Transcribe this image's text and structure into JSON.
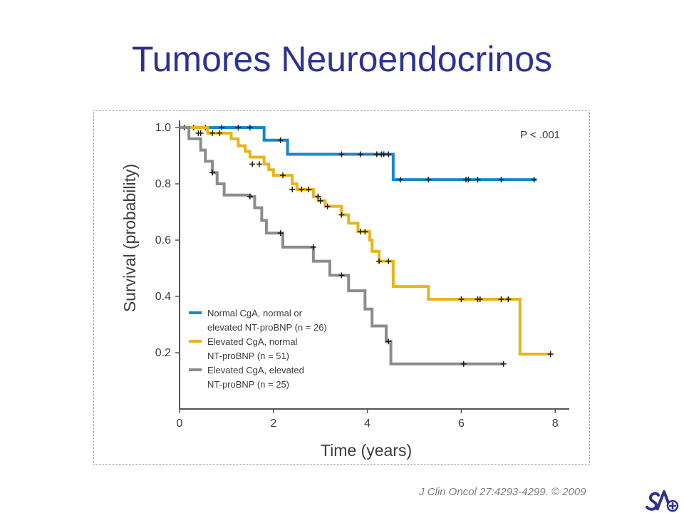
{
  "slide": {
    "title": "Tumores Neuroendocrinos",
    "citation": "J Clin Oncol 27:4293-4299. © 2009",
    "logo_icon": "sa-logo-icon"
  },
  "chart_data": {
    "type": "line",
    "step": true,
    "xlabel": "Time (years)",
    "ylabel": "Survival (probability)",
    "xlim": [
      0,
      8.3
    ],
    "ylim": [
      0,
      1.0
    ],
    "xticks": [
      0,
      2,
      4,
      6,
      8
    ],
    "yticks": [
      0.2,
      0.4,
      0.6,
      0.8,
      1.0
    ],
    "xtick_labels": [
      "0",
      "2",
      "4",
      "6",
      "8"
    ],
    "ytick_labels": [
      "0.2",
      "0.4",
      "0.6",
      "0.8",
      "1.0"
    ],
    "annotation": "P < .001",
    "legend_position": "bottom-left",
    "series": [
      {
        "name": "Normal CgA, normal or elevated NT-proBNP (n = 26)",
        "legend_lines": [
          "Normal CgA, normal or",
          "elevated NT-proBNP (n = 26)"
        ],
        "color": "#1a87c9",
        "steps": [
          [
            0.0,
            1.0
          ],
          [
            1.8,
            0.955
          ],
          [
            2.3,
            0.905
          ],
          [
            4.55,
            0.815
          ],
          [
            7.6,
            0.815
          ]
        ],
        "censored": [
          [
            0.1,
            1.0
          ],
          [
            0.3,
            1.0
          ],
          [
            0.55,
            1.0
          ],
          [
            0.9,
            1.0
          ],
          [
            1.25,
            1.0
          ],
          [
            1.5,
            1.0
          ],
          [
            2.15,
            0.955
          ],
          [
            3.45,
            0.905
          ],
          [
            3.85,
            0.905
          ],
          [
            4.2,
            0.905
          ],
          [
            4.3,
            0.905
          ],
          [
            4.35,
            0.905
          ],
          [
            4.45,
            0.905
          ],
          [
            4.7,
            0.815
          ],
          [
            5.3,
            0.815
          ],
          [
            6.1,
            0.815
          ],
          [
            6.15,
            0.815
          ],
          [
            6.35,
            0.815
          ],
          [
            6.85,
            0.815
          ],
          [
            7.55,
            0.815
          ]
        ]
      },
      {
        "name": "Elevated CgA, normal NT-proBNP (n = 51)",
        "legend_lines": [
          "Elevated CgA, normal",
          "NT-proBNP (n = 51)"
        ],
        "color": "#e8b41c",
        "steps": [
          [
            0.0,
            1.0
          ],
          [
            0.6,
            0.98
          ],
          [
            1.1,
            0.96
          ],
          [
            1.25,
            0.935
          ],
          [
            1.4,
            0.915
          ],
          [
            1.5,
            0.895
          ],
          [
            1.8,
            0.87
          ],
          [
            1.9,
            0.85
          ],
          [
            2.0,
            0.83
          ],
          [
            2.4,
            0.8
          ],
          [
            2.5,
            0.78
          ],
          [
            2.85,
            0.755
          ],
          [
            2.95,
            0.74
          ],
          [
            3.1,
            0.72
          ],
          [
            3.45,
            0.69
          ],
          [
            3.6,
            0.66
          ],
          [
            3.8,
            0.63
          ],
          [
            4.05,
            0.6
          ],
          [
            4.1,
            0.56
          ],
          [
            4.25,
            0.525
          ],
          [
            4.55,
            0.435
          ],
          [
            5.3,
            0.39
          ],
          [
            7.25,
            0.195
          ],
          [
            7.9,
            0.195
          ]
        ],
        "censored": [
          [
            0.4,
            0.98
          ],
          [
            0.7,
            0.98
          ],
          [
            0.85,
            0.98
          ],
          [
            1.55,
            0.87
          ],
          [
            1.7,
            0.87
          ],
          [
            2.2,
            0.83
          ],
          [
            2.4,
            0.78
          ],
          [
            2.6,
            0.78
          ],
          [
            2.75,
            0.78
          ],
          [
            2.95,
            0.755
          ],
          [
            3.0,
            0.74
          ],
          [
            3.15,
            0.72
          ],
          [
            3.45,
            0.69
          ],
          [
            3.85,
            0.63
          ],
          [
            3.95,
            0.63
          ],
          [
            4.25,
            0.525
          ],
          [
            4.45,
            0.525
          ],
          [
            6.0,
            0.39
          ],
          [
            6.35,
            0.39
          ],
          [
            6.4,
            0.39
          ],
          [
            6.85,
            0.39
          ],
          [
            7.0,
            0.39
          ],
          [
            7.9,
            0.195
          ]
        ]
      },
      {
        "name": "Elevated CgA, elevated NT-proBNP (n = 25)",
        "legend_lines": [
          "Elevated CgA, elevated",
          "NT-proBNP (n = 25)"
        ],
        "color": "#8c8c8c",
        "steps": [
          [
            0.0,
            1.0
          ],
          [
            0.2,
            0.96
          ],
          [
            0.45,
            0.92
          ],
          [
            0.55,
            0.88
          ],
          [
            0.7,
            0.84
          ],
          [
            0.8,
            0.8
          ],
          [
            0.95,
            0.76
          ],
          [
            1.5,
            0.755
          ],
          [
            1.6,
            0.715
          ],
          [
            1.75,
            0.67
          ],
          [
            1.85,
            0.625
          ],
          [
            2.2,
            0.575
          ],
          [
            2.85,
            0.525
          ],
          [
            3.2,
            0.475
          ],
          [
            3.6,
            0.42
          ],
          [
            3.95,
            0.355
          ],
          [
            4.1,
            0.295
          ],
          [
            4.4,
            0.24
          ],
          [
            4.5,
            0.16
          ],
          [
            6.9,
            0.16
          ]
        ],
        "censored": [
          [
            0.45,
            0.98
          ],
          [
            0.7,
            0.84
          ],
          [
            1.5,
            0.755
          ],
          [
            2.15,
            0.625
          ],
          [
            2.85,
            0.575
          ],
          [
            3.45,
            0.475
          ],
          [
            4.45,
            0.24
          ],
          [
            6.05,
            0.16
          ],
          [
            6.9,
            0.16
          ]
        ]
      }
    ]
  }
}
